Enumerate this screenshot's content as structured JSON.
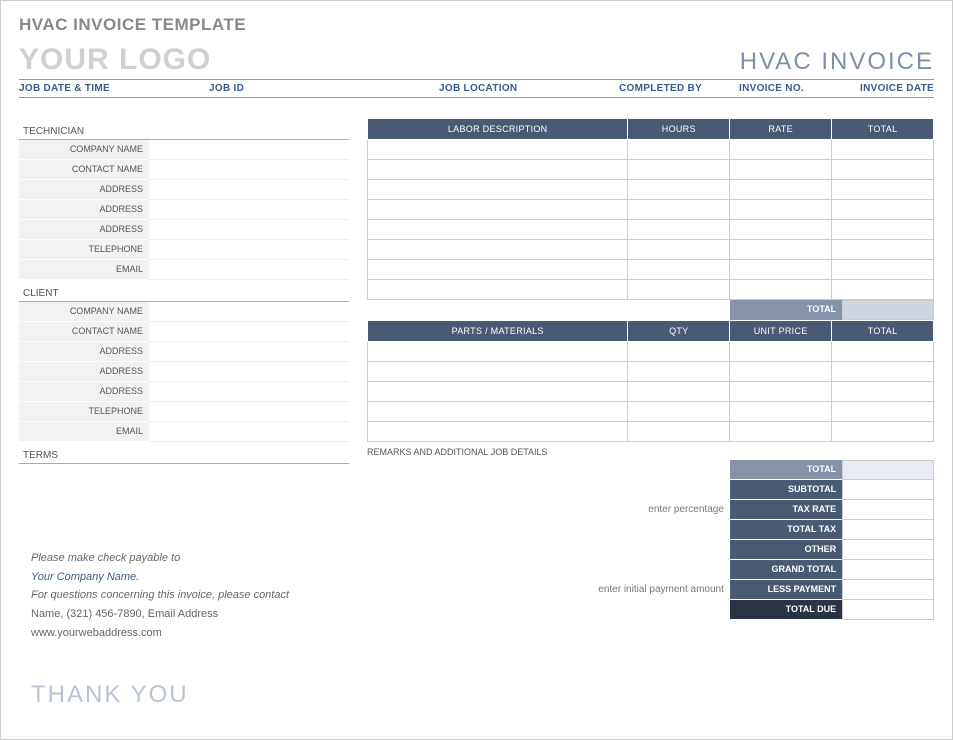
{
  "page_title": "HVAC INVOICE TEMPLATE",
  "logo_text": "YOUR LOGO",
  "invoice_title": "HVAC INVOICE",
  "colors": {
    "title_grey": "#888888",
    "logo_grey": "#d0d0d0",
    "header_blue": "#7e8fa8",
    "label_blue": "#3b5a8c",
    "th_bg": "#4a5a72",
    "total_med": "#8592a8",
    "total_dark": "#2b3442",
    "total_sub_bg": "#cdd5e1",
    "field_bg": "#f2f2f2",
    "border": "#cccccc"
  },
  "job_bar": {
    "date": "JOB DATE & TIME",
    "id": "JOB ID",
    "location": "JOB LOCATION",
    "completed": "COMPLETED BY",
    "invno": "INVOICE NO.",
    "invdate": "INVOICE DATE"
  },
  "technician": {
    "heading": "TECHNICIAN",
    "fields": [
      "COMPANY NAME",
      "CONTACT NAME",
      "ADDRESS",
      "ADDRESS",
      "ADDRESS",
      "TELEPHONE",
      "EMAIL"
    ]
  },
  "client": {
    "heading": "CLIENT",
    "fields": [
      "COMPANY NAME",
      "CONTACT NAME",
      "ADDRESS",
      "ADDRESS",
      "ADDRESS",
      "TELEPHONE",
      "EMAIL"
    ]
  },
  "terms_heading": "TERMS",
  "labor_table": {
    "headers": [
      "LABOR DESCRIPTION",
      "HOURS",
      "RATE",
      "TOTAL"
    ],
    "row_count": 8,
    "subtotal_label": "TOTAL"
  },
  "parts_table": {
    "headers": [
      "PARTS / MATERIALS",
      "QTY",
      "UNIT PRICE",
      "TOTAL"
    ],
    "row_count": 5
  },
  "remarks_label": "REMARKS AND ADDITIONAL JOB DETAILS",
  "totals": {
    "rows": [
      {
        "label": "TOTAL",
        "bg": "bg-med",
        "val_bg": "tval-lite"
      },
      {
        "label": "SUBTOTAL",
        "bg": "bg-lite",
        "val_bg": ""
      },
      {
        "label": "TAX RATE",
        "bg": "bg-lite",
        "val_bg": ""
      },
      {
        "label": "TOTAL TAX",
        "bg": "bg-lite",
        "val_bg": ""
      },
      {
        "label": "OTHER",
        "bg": "bg-lite",
        "val_bg": ""
      },
      {
        "label": "GRAND TOTAL",
        "bg": "bg-lite",
        "val_bg": ""
      },
      {
        "label": "LESS PAYMENT",
        "bg": "bg-lite",
        "val_bg": ""
      },
      {
        "label": "TOTAL DUE",
        "bg": "bg-dark",
        "val_bg": ""
      }
    ],
    "note_percentage": "enter percentage",
    "note_payment": "enter initial payment amount"
  },
  "footer": {
    "payable": "Please make check payable to",
    "company": "Your Company Name.",
    "questions": "For questions concerning this invoice, please contact",
    "contact": "Name, (321) 456-7890, Email Address",
    "web": "www.yourwebaddress.com",
    "thanks": "THANK YOU"
  }
}
